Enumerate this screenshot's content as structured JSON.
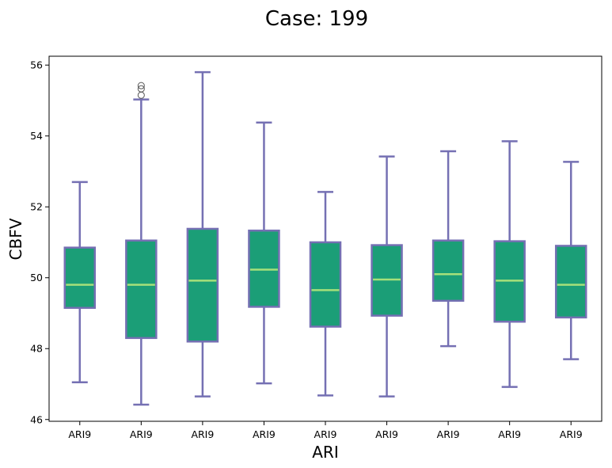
{
  "chart_data": {
    "type": "box",
    "title": "Case: 199",
    "xlabel": "ARI",
    "ylabel": "CBFV",
    "ylim": [
      45.95,
      56.25
    ],
    "yticks": [
      46,
      48,
      50,
      52,
      54,
      56
    ],
    "categories": [
      "ARI9",
      "ARI9",
      "ARI9",
      "ARI9",
      "ARI9",
      "ARI9",
      "ARI9",
      "ARI9",
      "ARI9"
    ],
    "boxes": [
      {
        "whisker_low": 47.05,
        "q1": 49.15,
        "median": 49.8,
        "q3": 50.85,
        "whisker_high": 52.7,
        "fliers": []
      },
      {
        "whisker_low": 46.42,
        "q1": 48.3,
        "median": 49.8,
        "q3": 51.05,
        "whisker_high": 55.03,
        "fliers": [
          55.15,
          55.33,
          55.42
        ]
      },
      {
        "whisker_low": 46.65,
        "q1": 48.2,
        "median": 49.92,
        "q3": 51.38,
        "whisker_high": 55.8,
        "fliers": []
      },
      {
        "whisker_low": 47.02,
        "q1": 49.18,
        "median": 50.23,
        "q3": 51.33,
        "whisker_high": 54.38,
        "fliers": []
      },
      {
        "whisker_low": 46.68,
        "q1": 48.62,
        "median": 49.65,
        "q3": 51.0,
        "whisker_high": 52.42,
        "fliers": []
      },
      {
        "whisker_low": 46.65,
        "q1": 48.93,
        "median": 49.95,
        "q3": 50.92,
        "whisker_high": 53.42,
        "fliers": []
      },
      {
        "whisker_low": 48.07,
        "q1": 49.35,
        "median": 50.1,
        "q3": 51.05,
        "whisker_high": 53.57,
        "fliers": []
      },
      {
        "whisker_low": 46.92,
        "q1": 48.76,
        "median": 49.92,
        "q3": 51.03,
        "whisker_high": 53.85,
        "fliers": []
      },
      {
        "whisker_low": 47.7,
        "q1": 48.88,
        "median": 49.8,
        "q3": 50.9,
        "whisker_high": 53.27,
        "fliers": []
      }
    ],
    "colors": {
      "box_fill": "#1b9e77",
      "box_edge": "#7570b3",
      "median": "#a6e07a",
      "whisker": "#7570b3",
      "flier_edge": "#555555"
    },
    "grid": false,
    "legend": "none"
  }
}
